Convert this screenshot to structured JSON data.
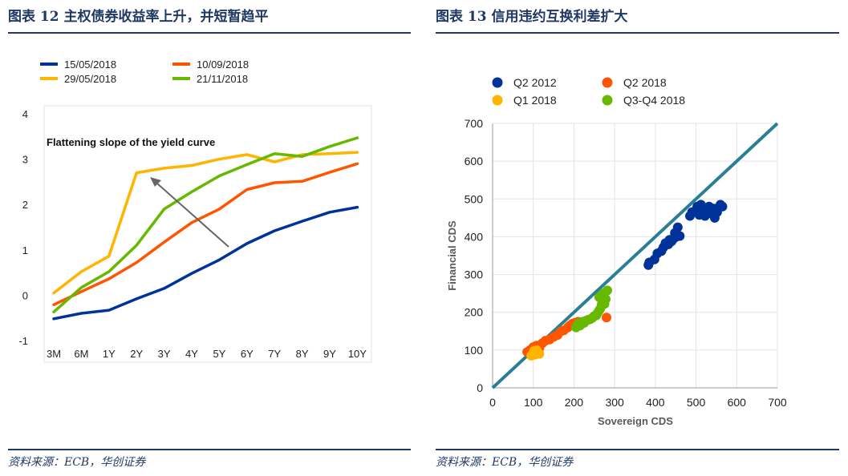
{
  "left_panel": {
    "title": "图表 12 主权债券收益率上升，并短暂趋平",
    "source": "资料来源：ECB，华创证券"
  },
  "right_panel": {
    "title": "图表 13 信用违约互换利差扩大",
    "source": "资料来源：ECB，华创证券"
  },
  "colors": {
    "navy": "#003399",
    "orange": "#ff5400",
    "yellow": "#ffb400",
    "green": "#66b800",
    "teal_line": "#2a7f96",
    "title_blue": "#1f3864"
  },
  "chart_data": [
    {
      "type": "line",
      "title": "",
      "annotation": "Flattening slope of the yield curve",
      "categories": [
        "3M",
        "6M",
        "1Y",
        "2Y",
        "3Y",
        "4Y",
        "5Y",
        "6Y",
        "7Y",
        "8Y",
        "9Y",
        "10Y"
      ],
      "ylim": [
        -1,
        4
      ],
      "yticks": [
        "4",
        "3",
        "2",
        "1",
        "0",
        "-1"
      ],
      "ytick_values": [
        4,
        3,
        2,
        1,
        0,
        -1
      ],
      "series": [
        {
          "name": "15/05/2018",
          "color": "#003399",
          "values": [
            -0.52,
            -0.4,
            -0.33,
            -0.08,
            0.15,
            0.48,
            0.78,
            1.14,
            1.42,
            1.63,
            1.83,
            1.94
          ]
        },
        {
          "name": "10/09/2018",
          "color": "#ff5400",
          "values": [
            -0.21,
            0.08,
            0.36,
            0.72,
            1.17,
            1.6,
            1.9,
            2.33,
            2.48,
            2.51,
            2.71,
            2.9
          ]
        },
        {
          "name": "29/05/2018",
          "color": "#ffb400",
          "values": [
            0.05,
            0.52,
            0.86,
            2.7,
            2.8,
            2.86,
            3.0,
            3.1,
            2.94,
            3.1,
            3.12,
            3.15
          ]
        },
        {
          "name": "21/11/2018",
          "color": "#66b800",
          "values": [
            -0.37,
            0.17,
            0.52,
            1.1,
            1.9,
            2.28,
            2.63,
            2.88,
            3.12,
            3.06,
            3.28,
            3.47
          ]
        }
      ],
      "legend_position": "top"
    },
    {
      "type": "scatter",
      "xlabel": "Sovereign CDS",
      "ylabel": "Financial CDS",
      "xlim": [
        0,
        700
      ],
      "ylim": [
        0,
        700
      ],
      "xticks": [
        "0",
        "100",
        "200",
        "300",
        "400",
        "500",
        "600",
        "700"
      ],
      "xtick_values": [
        0,
        100,
        200,
        300,
        400,
        500,
        600,
        700
      ],
      "yticks": [
        "0",
        "100",
        "200",
        "300",
        "400",
        "500",
        "600",
        "700"
      ],
      "ytick_values": [
        0,
        100,
        200,
        300,
        400,
        500,
        600,
        700
      ],
      "reference_line": [
        [
          0,
          0
        ],
        [
          700,
          700
        ]
      ],
      "legend_position": "top-left",
      "series": [
        {
          "name": "Q2 2012",
          "color": "#003399",
          "points": [
            [
              383,
              325
            ],
            [
              385,
              332
            ],
            [
              398,
              340
            ],
            [
              405,
              356
            ],
            [
              415,
              362
            ],
            [
              420,
              372
            ],
            [
              425,
              383
            ],
            [
              432,
              380
            ],
            [
              435,
              392
            ],
            [
              440,
              388
            ],
            [
              445,
              395
            ],
            [
              448,
              410
            ],
            [
              452,
              400
            ],
            [
              455,
              425
            ],
            [
              460,
              402
            ],
            [
              485,
              455
            ],
            [
              490,
              465
            ],
            [
              500,
              470
            ],
            [
              503,
              480
            ],
            [
              508,
              458
            ],
            [
              512,
              462
            ],
            [
              518,
              475
            ],
            [
              522,
              455
            ],
            [
              528,
              470
            ],
            [
              532,
              480
            ],
            [
              538,
              462
            ],
            [
              542,
              475
            ],
            [
              546,
              450
            ],
            [
              552,
              465
            ],
            [
              556,
              478
            ],
            [
              560,
              485
            ],
            [
              565,
              480
            ],
            [
              512,
              485
            ]
          ]
        },
        {
          "name": "Q2 2018",
          "color": "#ff5400",
          "points": [
            [
              85,
              95
            ],
            [
              92,
              100
            ],
            [
              100,
              108
            ],
            [
              108,
              112
            ],
            [
              115,
              105
            ],
            [
              122,
              118
            ],
            [
              130,
              125
            ],
            [
              140,
              128
            ],
            [
              150,
              135
            ],
            [
              160,
              140
            ],
            [
              168,
              150
            ],
            [
              175,
              152
            ],
            [
              185,
              160
            ],
            [
              190,
              165
            ],
            [
              196,
              170
            ],
            [
              202,
              172
            ],
            [
              210,
              175
            ],
            [
              280,
              186
            ]
          ]
        },
        {
          "name": "Q1 2018",
          "color": "#ffb400",
          "points": [
            [
              95,
              85
            ],
            [
              100,
              92
            ],
            [
              105,
              88
            ],
            [
              110,
              96
            ],
            [
              115,
              90
            ],
            [
              108,
              100
            ],
            [
              102,
              98
            ]
          ]
        },
        {
          "name": "Q3-Q4 2018",
          "color": "#66b800",
          "points": [
            [
              205,
              160
            ],
            [
              210,
              170
            ],
            [
              215,
              165
            ],
            [
              220,
              175
            ],
            [
              225,
              172
            ],
            [
              230,
              178
            ],
            [
              235,
              180
            ],
            [
              240,
              182
            ],
            [
              245,
              185
            ],
            [
              250,
              190
            ],
            [
              255,
              192
            ],
            [
              258,
              198
            ],
            [
              262,
              205
            ],
            [
              265,
              210
            ],
            [
              268,
              220
            ],
            [
              270,
              228
            ],
            [
              262,
              240
            ],
            [
              270,
              232
            ],
            [
              275,
              222
            ],
            [
              272,
              250
            ],
            [
              282,
              258
            ],
            [
              278,
              235
            ],
            [
              268,
              245
            ]
          ]
        }
      ]
    }
  ]
}
